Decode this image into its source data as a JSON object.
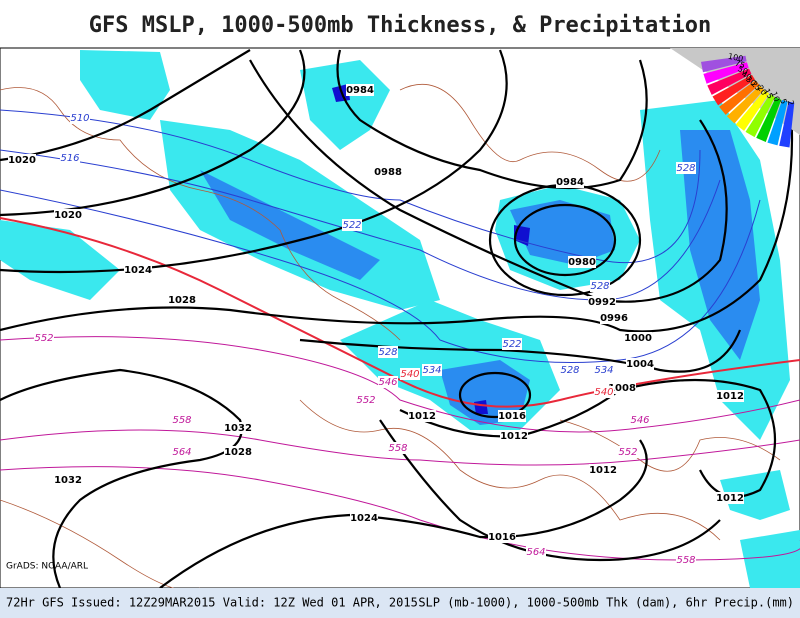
{
  "title": "GFS MSLP, 1000-500mb Thickness, & Precipitation",
  "credit": "GrADS: NOAA/ARL",
  "footer": {
    "issued": "72Hr GFS Issued: 12Z29MAR2015 Valid: 12Z Wed 01 APR, 2015",
    "units": "SLP (mb-1000), 1000-500mb Thk (dam), 6hr Precip.(mm)"
  },
  "isobar_labels": [
    "0984",
    "1020",
    "0988",
    "0984",
    "1020",
    "0980",
    "1024",
    "1028",
    "0992",
    "0996",
    "1000",
    "1004",
    "1008",
    "1012",
    "1016",
    "1012",
    "1032",
    "1028",
    "1012",
    "1012",
    "1032",
    "1012",
    "1024",
    "1016"
  ],
  "thickness_labels": [
    "510",
    "516",
    "522",
    "528",
    "522",
    "528",
    "534",
    "528",
    "534",
    "528",
    "552",
    "546",
    "540",
    "552",
    "540",
    "558",
    "564",
    "558",
    "546",
    "552",
    "564",
    "558"
  ],
  "legend_labels": [
    "100",
    "75",
    "50",
    "40",
    "30",
    "25",
    "20",
    "15",
    "10",
    "5",
    "2"
  ]
}
